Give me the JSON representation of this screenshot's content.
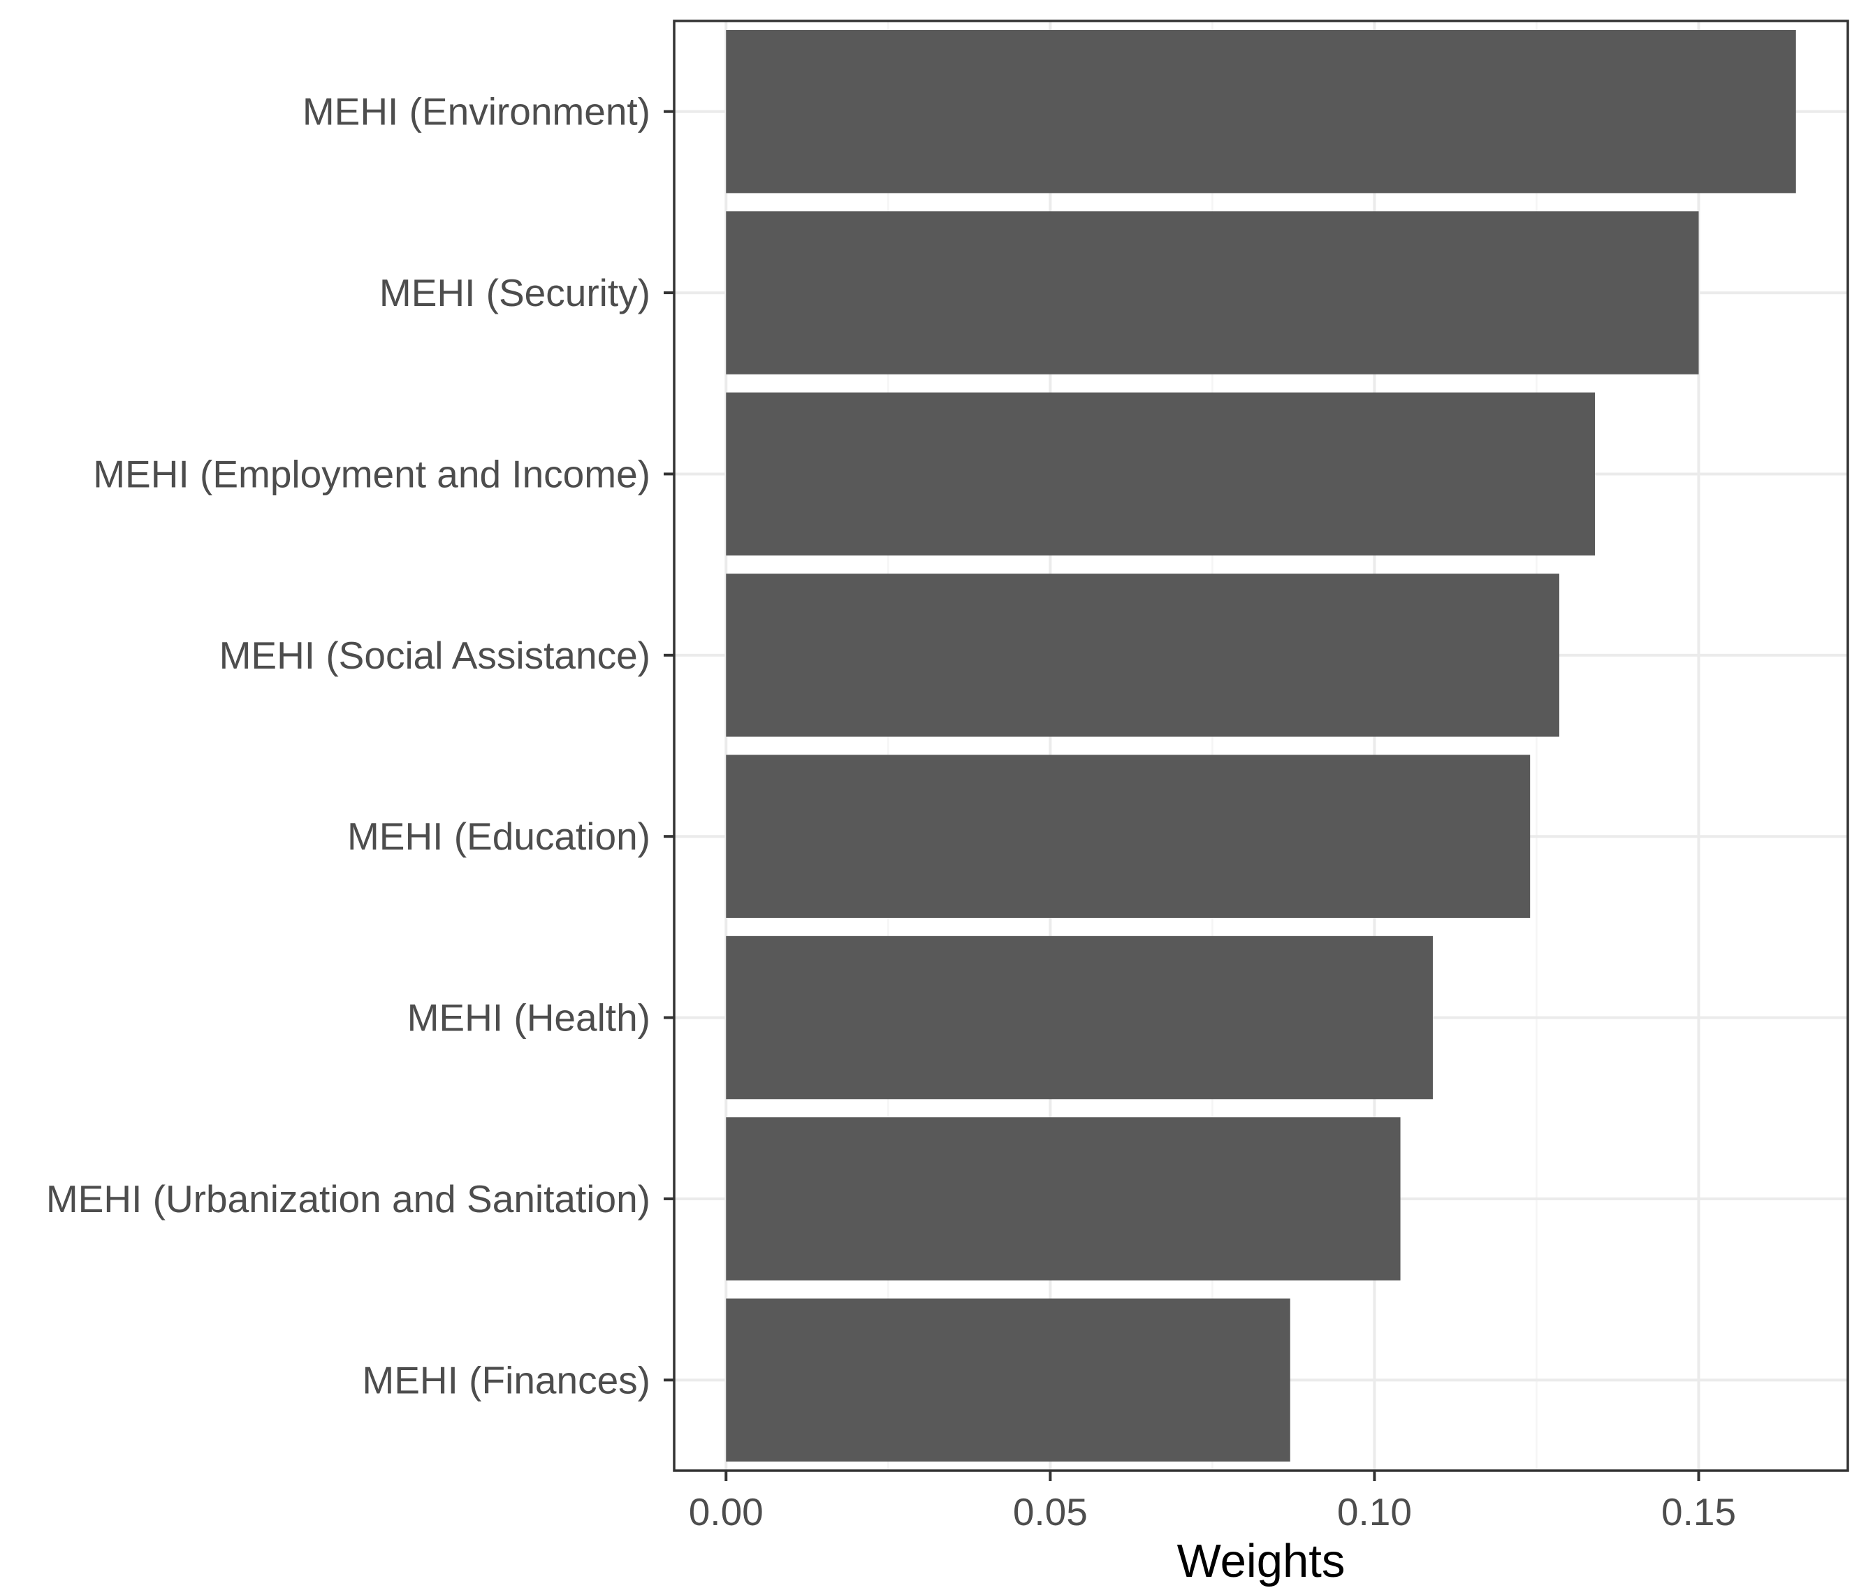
{
  "chart_data": {
    "type": "bar",
    "orientation": "horizontal",
    "categories": [
      "MEHI (Environment)",
      "MEHI (Security)",
      "MEHI (Employment and Income)",
      "MEHI (Social Assistance)",
      "MEHI (Education)",
      "MEHI (Health)",
      "MEHI (Urbanization and Sanitation)",
      "MEHI (Finances)"
    ],
    "values": [
      0.165,
      0.15,
      0.134,
      0.1285,
      0.124,
      0.109,
      0.104,
      0.087
    ],
    "title": "",
    "xlabel": "Weights",
    "ylabel": "",
    "xlim": [
      -0.008,
      0.173
    ],
    "x_ticks": [
      0.0,
      0.05,
      0.1,
      0.15
    ],
    "x_tick_labels": [
      "0.00",
      "0.05",
      "0.10",
      "0.15"
    ],
    "grid": true,
    "legend": "none",
    "colors": {
      "bar": "#595959",
      "panel_border": "#333333",
      "grid_major": "#ebebeb",
      "grid_minor": "#f5f5f5",
      "tick_text": "#4d4d4d",
      "axis_title": "#000000"
    }
  }
}
